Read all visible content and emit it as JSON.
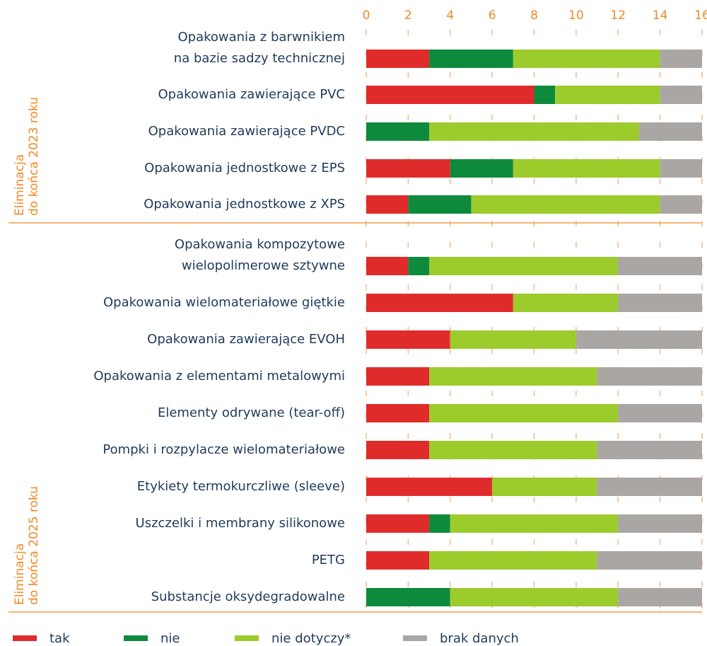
{
  "chart_data": {
    "type": "bar",
    "orientation": "horizontal",
    "stacked": true,
    "xlim": [
      0,
      16
    ],
    "xticks": [
      0,
      2,
      4,
      6,
      8,
      10,
      12,
      14,
      16
    ],
    "groups": [
      {
        "label": "Eliminacja\ndo końca 2023 roku",
        "categories": [
          "Opakowania z barwnikiem\nna bazie sadzy technicznej",
          "Opakowania zawierające PVC",
          "Opakowania zawierające PVDC",
          "Opakowania jednostkowe z EPS",
          "Opakowania jednostkowe z XPS"
        ]
      },
      {
        "label": "Eliminacja\ndo końca 2025 roku",
        "categories": [
          "Opakowania kompozytowe\nwielopolimerowe sztywne",
          "Opakowania wielomateriałowe giętkie",
          "Opakowania zawierające EVOH",
          "Opakowania z elementami metalowymi",
          "Elementy odrywane (tear-off)",
          "Pompki i rozpylacze wielomateriałowe",
          "Etykiety termokurczliwe (sleeve)",
          "Uszczelki i membrany silikonowe",
          "PETG",
          "Substancje oksydegradowalne"
        ]
      }
    ],
    "series": [
      {
        "name": "tak",
        "color": "#e02b2b",
        "values": [
          3,
          8,
          0,
          4,
          2,
          2,
          7,
          4,
          3,
          3,
          3,
          6,
          3,
          3,
          0
        ]
      },
      {
        "name": "nie",
        "color": "#0e8a3c",
        "values": [
          4,
          1,
          3,
          3,
          3,
          1,
          0,
          0,
          0,
          0,
          0,
          0,
          1,
          0,
          4
        ]
      },
      {
        "name": "nie dotyczy*",
        "color": "#9ccb2c",
        "values": [
          7,
          5,
          10,
          7,
          9,
          9,
          5,
          6,
          8,
          9,
          8,
          5,
          8,
          8,
          8
        ]
      },
      {
        "name": "brak danych",
        "color": "#aaa6a4",
        "values": [
          2,
          2,
          3,
          2,
          2,
          4,
          4,
          6,
          5,
          4,
          5,
          5,
          4,
          5,
          4
        ]
      }
    ]
  }
}
